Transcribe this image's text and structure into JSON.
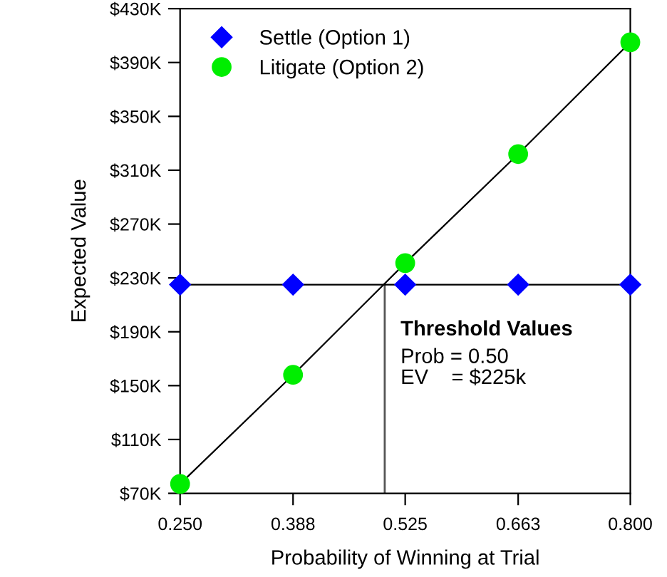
{
  "chart_data": {
    "type": "line",
    "xlabel": "Probability of Winning at Trial",
    "ylabel": "Expected Value",
    "x": [
      0.25,
      0.388,
      0.525,
      0.663,
      0.8
    ],
    "series": [
      {
        "name": "Settle (Option 1)",
        "color": "#0000ff",
        "marker": "diamond",
        "values": [
          225,
          225,
          225,
          225,
          225
        ]
      },
      {
        "name": "Litigate (Option 2)",
        "color": "#00ee00",
        "marker": "circle",
        "values": [
          77,
          158,
          241,
          322,
          405
        ]
      }
    ],
    "xlim": [
      0.25,
      0.8
    ],
    "xticks": [
      {
        "value": 0.25,
        "label": "0.250"
      },
      0.388,
      0.525,
      0.663,
      {
        "value": 0.8,
        "label": "0.800"
      }
    ],
    "ylim": [
      70,
      430
    ],
    "yticks": [
      {
        "value": 70,
        "label": "$70K"
      },
      {
        "value": 110,
        "label": "$110K"
      },
      {
        "value": 150,
        "label": "$150K"
      },
      {
        "value": 190,
        "label": "$190K"
      },
      {
        "value": 230,
        "label": "$230K"
      },
      {
        "value": 270,
        "label": "$270K"
      },
      {
        "value": 310,
        "label": "$310K"
      },
      {
        "value": 350,
        "label": "$350K"
      },
      {
        "value": 390,
        "label": "$390K"
      },
      {
        "value": 430,
        "label": "$430K"
      }
    ],
    "annotations": [
      {
        "text": "Threshold Values\nProb = 0.50\nEV    = $225k",
        "x": 0.5,
        "y": 225
      }
    ],
    "ref_lines": [
      {
        "axis": "x",
        "value": 0.5,
        "color": "#555555"
      }
    ],
    "grid": false,
    "legend": "top left"
  }
}
